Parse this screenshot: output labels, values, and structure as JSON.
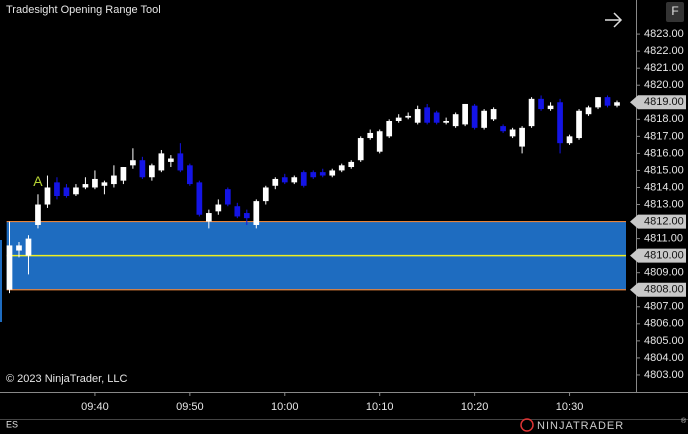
{
  "chart_data": {
    "type": "candlestick",
    "title": "Tradesight Opening Range Tool",
    "copyright": "© 2023 NinjaTrader, LLC",
    "instrument": "ES",
    "brand": "NINJATRADER",
    "brand_mark": "®",
    "button": "F",
    "up_color": "#ffffff",
    "down_color": "#1414e6",
    "x": [
      "09:31",
      "09:32",
      "09:33",
      "09:34",
      "09:35",
      "09:36",
      "09:37",
      "09:38",
      "09:39",
      "09:40",
      "09:41",
      "09:42",
      "09:43",
      "09:44",
      "09:45",
      "09:46",
      "09:47",
      "09:48",
      "09:49",
      "09:50",
      "09:51",
      "09:52",
      "09:53",
      "09:54",
      "09:55",
      "09:56",
      "09:57",
      "09:58",
      "09:59",
      "10:00",
      "10:01",
      "10:02",
      "10:03",
      "10:04",
      "10:05",
      "10:06",
      "10:07",
      "10:08",
      "10:09",
      "10:10",
      "10:11",
      "10:12",
      "10:13",
      "10:14",
      "10:15",
      "10:16",
      "10:17",
      "10:18",
      "10:19",
      "10:20",
      "10:21",
      "10:22",
      "10:23",
      "10:24",
      "10:25",
      "10:26",
      "10:27",
      "10:28",
      "10:29",
      "10:30",
      "10:31",
      "10:32",
      "10:33",
      "10:34",
      "10:35"
    ],
    "open": [
      4808.0,
      4810.3,
      4810.0,
      4811.8,
      4813.0,
      4814.3,
      4814.0,
      4813.6,
      4814.0,
      4814.0,
      4814.1,
      4814.2,
      4814.4,
      4815.3,
      4815.6,
      4814.6,
      4815.0,
      4815.5,
      4816.0,
      4815.3,
      4814.3,
      4812.0,
      4812.6,
      4813.9,
      4812.9,
      4812.5,
      4811.8,
      4813.2,
      4814.1,
      4814.6,
      4814.3,
      4814.9,
      4814.9,
      4814.9,
      4814.7,
      4815.0,
      4815.2,
      4815.6,
      4816.9,
      4816.1,
      4817.0,
      4817.9,
      4818.1,
      4817.8,
      4818.7,
      4818.4,
      4817.8,
      4817.6,
      4817.7,
      4818.8,
      4817.5,
      4818.0,
      4817.6,
      4817.0,
      4816.4,
      4817.6,
      4819.2,
      4818.6,
      4819.0,
      4816.6,
      4816.9,
      4818.3,
      4818.7,
      4819.3,
      4818.8
    ],
    "high": [
      4812.0,
      4810.8,
      4811.2,
      4813.6,
      4814.7,
      4814.6,
      4814.2,
      4814.2,
      4814.6,
      4815.0,
      4814.4,
      4815.3,
      4815.2,
      4816.3,
      4815.8,
      4815.4,
      4816.2,
      4815.9,
      4816.6,
      4815.4,
      4814.4,
      4812.7,
      4813.3,
      4814.0,
      4813.1,
      4812.7,
      4813.3,
      4814.1,
      4814.6,
      4814.8,
      4814.7,
      4815.0,
      4815.0,
      4815.1,
      4815.1,
      4815.4,
      4815.6,
      4817.0,
      4817.4,
      4817.4,
      4818.0,
      4818.3,
      4818.4,
      4818.8,
      4818.9,
      4818.5,
      4818.1,
      4818.4,
      4818.9,
      4818.9,
      4818.6,
      4818.7,
      4817.7,
      4817.5,
      4817.6,
      4819.3,
      4819.4,
      4819.0,
      4819.2,
      4817.1,
      4818.6,
      4818.8,
      4819.3,
      4819.4,
      4819.1
    ],
    "low": [
      4807.8,
      4809.9,
      4808.9,
      4811.6,
      4812.8,
      4813.3,
      4813.4,
      4813.5,
      4813.9,
      4813.9,
      4813.6,
      4814.0,
      4814.2,
      4815.1,
      4814.5,
      4814.4,
      4814.9,
      4815.2,
      4814.9,
      4814.1,
      4812.3,
      4811.6,
      4812.4,
      4812.9,
      4812.2,
      4811.8,
      4811.6,
      4813.0,
      4813.9,
      4814.2,
      4814.2,
      4814.0,
      4814.5,
      4814.6,
      4814.6,
      4814.9,
      4815.1,
      4815.5,
      4816.8,
      4816.0,
      4816.9,
      4817.8,
      4818.0,
      4817.7,
      4817.7,
      4817.7,
      4817.7,
      4817.5,
      4817.6,
      4817.4,
      4817.4,
      4817.9,
      4817.2,
      4816.9,
      4816.0,
      4817.5,
      4818.5,
      4818.5,
      4816.0,
      4816.5,
      4816.8,
      4818.2,
      4818.6,
      4818.7,
      4818.7
    ],
    "close": [
      4810.6,
      4810.6,
      4811.0,
      4813.0,
      4814.0,
      4813.5,
      4813.5,
      4814.0,
      4814.2,
      4814.5,
      4814.3,
      4814.7,
      4815.2,
      4815.6,
      4814.6,
      4815.3,
      4816.0,
      4815.7,
      4815.0,
      4814.2,
      4812.4,
      4812.5,
      4813.0,
      4813.0,
      4812.3,
      4812.2,
      4813.2,
      4814.0,
      4814.5,
      4814.3,
      4814.6,
      4814.1,
      4814.6,
      4814.7,
      4815.0,
      4815.3,
      4815.5,
      4816.9,
      4817.2,
      4817.3,
      4817.9,
      4818.1,
      4818.2,
      4818.6,
      4817.8,
      4817.8,
      4817.9,
      4818.3,
      4818.9,
      4817.5,
      4818.5,
      4818.6,
      4817.3,
      4817.4,
      4817.5,
      4819.2,
      4818.6,
      4818.8,
      4816.6,
      4817.0,
      4818.5,
      4818.7,
      4819.3,
      4818.8,
      4819.0
    ],
    "xlim": [
      "09:30",
      "10:37"
    ],
    "xticks": [
      "09:40",
      "09:50",
      "10:00",
      "10:10",
      "10:20",
      "10:30"
    ],
    "ylim": [
      4802,
      4825
    ],
    "yticks": [
      {
        "value": 4803,
        "label": "4803.00"
      },
      {
        "value": 4804,
        "label": "4804.00"
      },
      {
        "value": 4805,
        "label": "4805.00"
      },
      {
        "value": 4806,
        "label": "4806.00"
      },
      {
        "value": 4807,
        "label": "4807.00"
      },
      {
        "value": 4808,
        "label": "4808.00"
      },
      {
        "value": 4809,
        "label": "4809.00"
      },
      {
        "value": 4810,
        "label": "4810.00"
      },
      {
        "value": 4811,
        "label": "4811.00"
      },
      {
        "value": 4812,
        "label": "4812.00"
      },
      {
        "value": 4813,
        "label": "4813.00"
      },
      {
        "value": 4814,
        "label": "4814.00"
      },
      {
        "value": 4815,
        "label": "4815.00"
      },
      {
        "value": 4816,
        "label": "4816.00"
      },
      {
        "value": 4817,
        "label": "4817.00"
      },
      {
        "value": 4818,
        "label": "4818.00"
      },
      {
        "value": 4819,
        "label": "4819.00"
      },
      {
        "value": 4820,
        "label": "4820.00"
      },
      {
        "value": 4821,
        "label": "4821.00"
      },
      {
        "value": 4822,
        "label": "4822.00"
      },
      {
        "value": 4823,
        "label": "4823.00"
      }
    ],
    "opening_range": {
      "start": "09:31",
      "high": 4812,
      "low": 4808,
      "mid": 4810,
      "fill": "#1e6cc0",
      "border": "#e8833a",
      "mid_color": "#f0f020"
    },
    "price_markers": [
      {
        "value": 4819,
        "label": "4819.00"
      },
      {
        "value": 4812,
        "label": "4812.00"
      },
      {
        "value": 4810,
        "label": "4810.00"
      },
      {
        "value": 4808,
        "label": "4808.00"
      }
    ],
    "annotations": [
      {
        "text": "A",
        "x": "09:34",
        "color": "#b5d334"
      }
    ]
  }
}
